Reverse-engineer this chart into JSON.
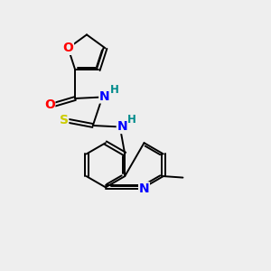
{
  "bg_color": "#eeeeee",
  "bond_color": "#000000",
  "atom_colors": {
    "O": "#ff0000",
    "N": "#0000ff",
    "S": "#cccc00",
    "H": "#008b8b",
    "C": "#000000"
  },
  "font_size_atoms": 10,
  "font_size_h": 8.5,
  "figsize": [
    3.0,
    3.0
  ],
  "dpi": 100
}
